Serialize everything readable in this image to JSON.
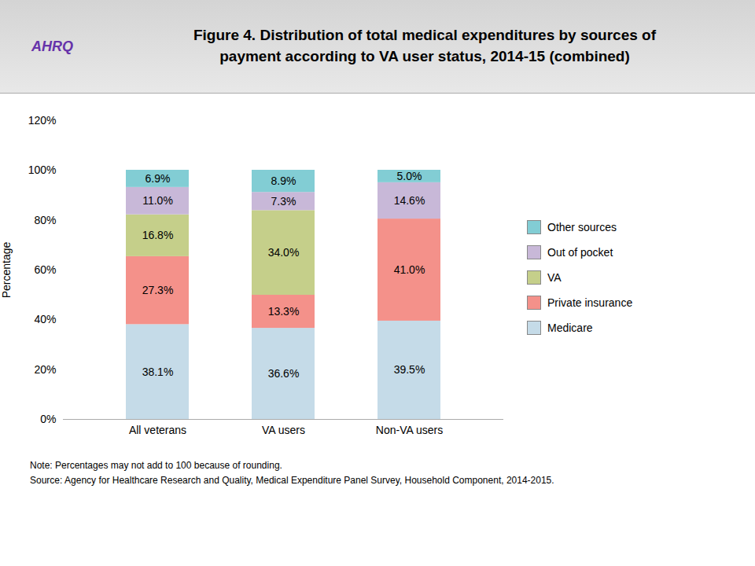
{
  "chart_data": {
    "type": "bar",
    "stacked": true,
    "title": "Figure 4. Distribution of total medical expenditures by sources of\npayment according to VA user status, 2014-15 (combined)",
    "annotations": [
      "AHRQ"
    ],
    "notes": [
      "Note: Percentages may not add to 100 because of rounding.",
      "Source: Agency for Healthcare Research and Quality, Medical Expenditure Panel Survey, Household Component, 2014-2015."
    ],
    "ylabel": "Percentage",
    "categories": [
      "All veterans",
      "VA users",
      "Non-VA users"
    ],
    "series": [
      {
        "name": "Medicare",
        "color": "#c5dbe8",
        "values": [
          38.1,
          36.6,
          39.5
        ],
        "value_labels": [
          "38.1%",
          "36.6%",
          "39.5%"
        ]
      },
      {
        "name": "Private insurance",
        "color": "#f4918a",
        "values": [
          27.3,
          13.3,
          41.0
        ],
        "value_labels": [
          "27.3%",
          "13.3%",
          "41.0%"
        ]
      },
      {
        "name": "VA",
        "color": "#c5cf8a",
        "values": [
          16.8,
          34.0,
          0.0
        ],
        "value_labels": [
          "16.8%",
          "34.0%",
          null
        ]
      },
      {
        "name": "Out of pocket",
        "color": "#c8b8d8",
        "values": [
          11.0,
          7.3,
          14.6
        ],
        "value_labels": [
          "11.0%",
          "7.3%",
          "14.6%"
        ]
      },
      {
        "name": "Other sources",
        "color": "#82cdd4",
        "values": [
          6.9,
          8.9,
          5.0
        ],
        "value_labels": [
          "6.9%",
          "8.9%",
          "5.0%"
        ]
      }
    ],
    "ylim": [
      0,
      120
    ],
    "yticks": [
      {
        "value": 0,
        "label": "0%"
      },
      {
        "value": 20,
        "label": "20%"
      },
      {
        "value": 40,
        "label": "40%"
      },
      {
        "value": 60,
        "label": "60%"
      },
      {
        "value": 80,
        "label": "80%"
      },
      {
        "value": 100,
        "label": "100%"
      },
      {
        "value": 120,
        "label": "120%"
      }
    ],
    "data_labels": true,
    "grid": false,
    "legend": "right"
  }
}
